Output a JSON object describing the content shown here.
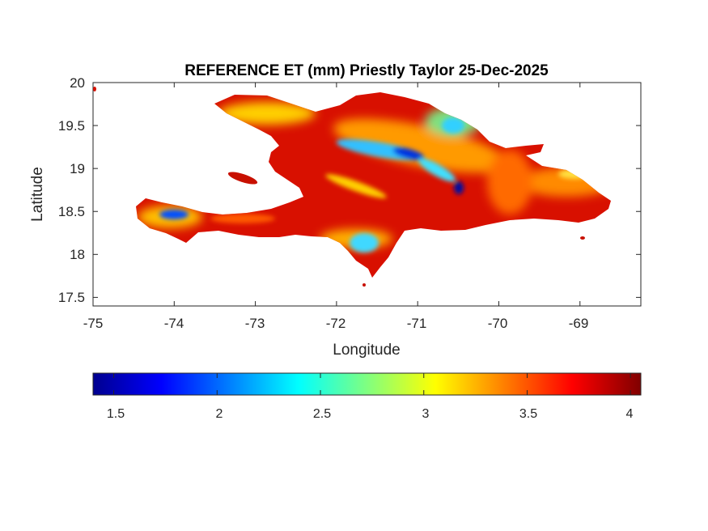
{
  "map": {
    "title": "REFERENCE ET (mm) Priestly Taylor 25-Dec-2025",
    "xlabel": "Longitude",
    "ylabel": "Latitude",
    "xlim": [
      -75,
      -68.25
    ],
    "ylim": [
      17.4,
      20
    ],
    "xticks": [
      "-75",
      "-74",
      "-73",
      "-72",
      "-71",
      "-70",
      "-69"
    ],
    "xtick_values": [
      -75,
      -74,
      -73,
      -72,
      -71,
      -70,
      -69
    ],
    "yticks": [
      "20",
      "19.5",
      "19",
      "18.5",
      "18",
      "17.5"
    ],
    "ytick_values": [
      20,
      19.5,
      19,
      18.5,
      18,
      17.5
    ],
    "region": "Hispaniola (Haiti & Dominican Republic)",
    "colormap": "jet",
    "colors": {
      "dark_red": "#800000",
      "red": "#ff0000",
      "orange": "#ff8000",
      "yellow": "#ffff00",
      "cyan": "#00ffff",
      "blue": "#0000ff",
      "dark_blue": "#00008f"
    }
  },
  "colorbar": {
    "range": [
      1.4,
      4.05
    ],
    "ticks": [
      "1.5",
      "2",
      "2.5",
      "3",
      "3.5",
      "4"
    ],
    "tick_values": [
      1.5,
      2,
      2.5,
      3,
      3.5,
      4
    ]
  }
}
